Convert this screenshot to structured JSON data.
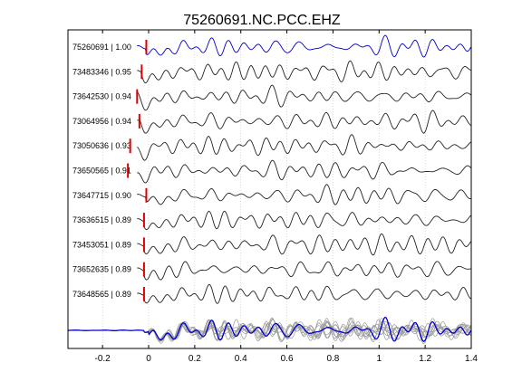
{
  "chart_data": {
    "type": "line",
    "title": "75260691.NC.PCC.EHZ",
    "xlabel": "",
    "ylabel": "",
    "xlim": [
      -0.35,
      1.4
    ],
    "xticks": [
      "-0.2",
      "0",
      "0.2",
      "0.4",
      "0.6",
      "0.8",
      "1",
      "1.2",
      "1.4"
    ],
    "xtick_values": [
      -0.2,
      0,
      0.2,
      0.4,
      0.6,
      0.8,
      1.0,
      1.2,
      1.4
    ],
    "grid": "vertical dotted",
    "series": [
      {
        "name": "75260691 | 1.00",
        "pick": -0.01,
        "color": "#0000cc"
      },
      {
        "name": "73483346 | 0.95",
        "pick": -0.03,
        "color": "#222222"
      },
      {
        "name": "73642530 | 0.94",
        "pick": -0.05,
        "color": "#222222"
      },
      {
        "name": "73064956 | 0.94",
        "pick": -0.04,
        "color": "#222222"
      },
      {
        "name": "73050636 | 0.93",
        "pick": -0.08,
        "color": "#222222"
      },
      {
        "name": "73650565 | 0.91",
        "pick": -0.09,
        "color": "#222222"
      },
      {
        "name": "73647715 | 0.90",
        "pick": -0.01,
        "color": "#222222"
      },
      {
        "name": "73636515 | 0.89",
        "pick": -0.02,
        "color": "#222222"
      },
      {
        "name": "73453051 | 0.89",
        "pick": -0.02,
        "color": "#222222"
      },
      {
        "name": "73652635 | 0.89",
        "pick": -0.02,
        "color": "#222222"
      },
      {
        "name": "73648565 | 0.89",
        "pick": -0.02,
        "color": "#222222"
      }
    ],
    "stack_colors": {
      "main": "#0000cc",
      "others": "#999999",
      "pick": "#dd0000"
    }
  }
}
